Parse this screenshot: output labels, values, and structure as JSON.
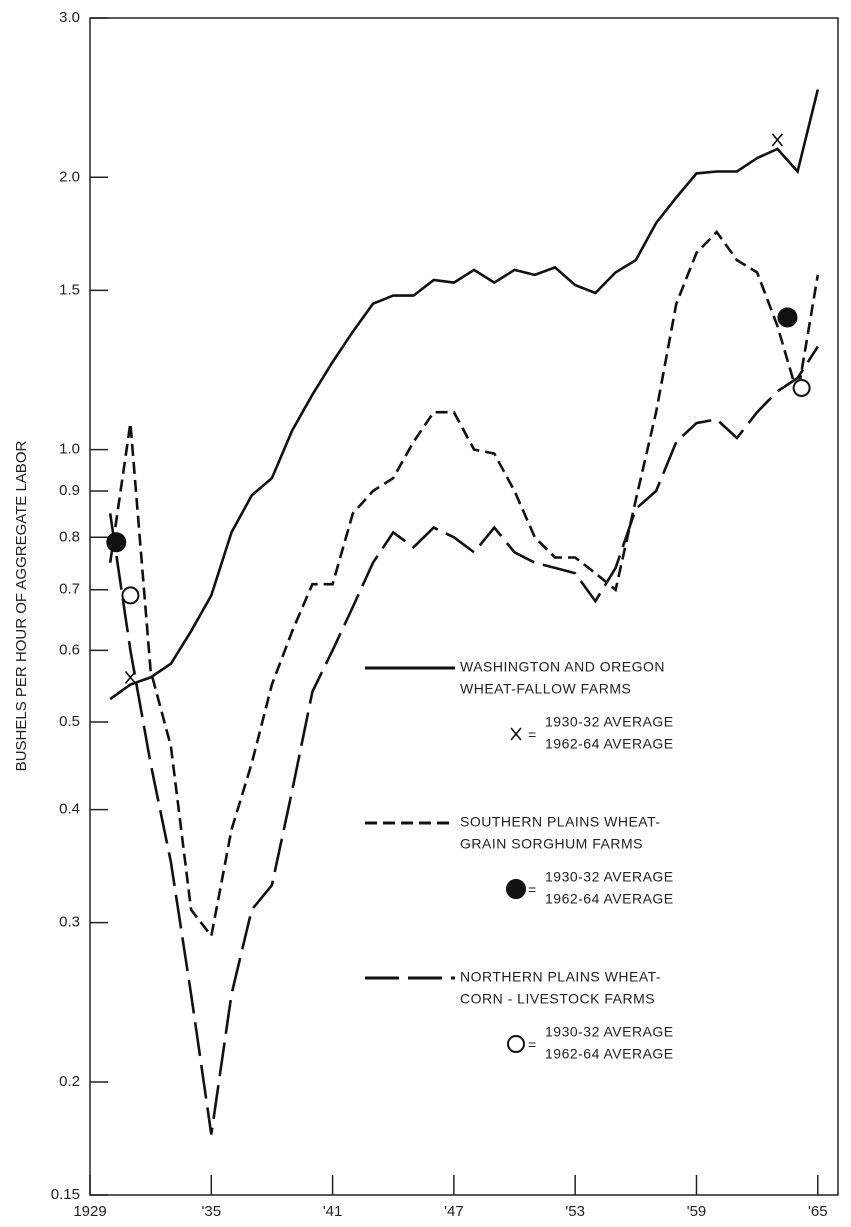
{
  "chart_data": {
    "type": "line",
    "y_label": "BUSHELS PER HOUR OF AGGREGATE LABOR",
    "log_y": true,
    "xlim": [
      1929,
      1966
    ],
    "ylim": [
      0.15,
      3.0
    ],
    "xticks": [
      {
        "value": 1929,
        "label": "1929"
      },
      {
        "value": 1935,
        "label": "'35"
      },
      {
        "value": 1941,
        "label": "'41"
      },
      {
        "value": 1947,
        "label": "'47"
      },
      {
        "value": 1953,
        "label": "'53"
      },
      {
        "value": 1959,
        "label": "'59"
      },
      {
        "value": 1965,
        "label": "'65"
      }
    ],
    "yticks": [
      0.15,
      0.2,
      0.3,
      0.4,
      0.5,
      0.6,
      0.7,
      0.8,
      0.9,
      {
        "value": 1,
        "label": "1.0"
      },
      1.5,
      {
        "value": 2,
        "label": "2.0"
      },
      {
        "value": 3,
        "label": "3.0"
      }
    ],
    "x": [
      1930,
      1931,
      1932,
      1933,
      1934,
      1935,
      1936,
      1937,
      1938,
      1939,
      1940,
      1941,
      1942,
      1943,
      1944,
      1945,
      1946,
      1947,
      1948,
      1949,
      1950,
      1951,
      1952,
      1953,
      1954,
      1955,
      1956,
      1957,
      1958,
      1959,
      1960,
      1961,
      1962,
      1963,
      1964,
      1965
    ],
    "series": [
      {
        "legend_lines": [
          "WASHINGTON AND OREGON",
          "WHEAT-FALLOW FARMS"
        ],
        "dash": "solid",
        "color": "#111",
        "values": [
          0.53,
          0.55,
          0.56,
          0.58,
          0.63,
          0.69,
          0.81,
          0.89,
          0.93,
          1.05,
          1.15,
          1.25,
          1.35,
          1.45,
          1.48,
          1.48,
          1.54,
          1.53,
          1.58,
          1.53,
          1.58,
          1.56,
          1.59,
          1.52,
          1.49,
          1.57,
          1.62,
          1.78,
          1.9,
          2.02,
          2.03,
          2.03,
          2.1,
          2.15,
          2.03,
          2.5
        ],
        "marker": "x",
        "marker_x": [
          1931,
          1963
        ],
        "marker_values": [
          0.56,
          2.2
        ],
        "marker_labels": [
          "1930-32 AVERAGE",
          "1962-64 AVERAGE"
        ]
      },
      {
        "legend_lines": [
          "SOUTHERN PLAINS WHEAT-",
          "GRAIN SORGHUM FARMS"
        ],
        "dash": "short",
        "color": "#111",
        "values": [
          0.75,
          1.07,
          0.57,
          0.47,
          0.31,
          0.29,
          0.38,
          0.45,
          0.55,
          0.63,
          0.71,
          0.71,
          0.85,
          0.9,
          0.93,
          1.02,
          1.1,
          1.1,
          1.0,
          0.99,
          0.9,
          0.8,
          0.76,
          0.76,
          0.73,
          0.7,
          0.88,
          1.1,
          1.45,
          1.65,
          1.74,
          1.62,
          1.57,
          1.37,
          1.15,
          1.56
        ],
        "marker": "dot",
        "marker_x": [
          1930.3,
          1963.5
        ],
        "marker_values": [
          0.79,
          1.4
        ],
        "marker_labels": [
          "1930-32 AVERAGE",
          "1962-64 AVERAGE"
        ]
      },
      {
        "legend_lines": [
          "NORTHERN PLAINS WHEAT-",
          "CORN - LIVESTOCK FARMS"
        ],
        "dash": "long",
        "color": "#111",
        "values": [
          0.85,
          0.6,
          0.45,
          0.35,
          0.25,
          0.175,
          0.25,
          0.31,
          0.33,
          0.42,
          0.54,
          0.6,
          0.67,
          0.75,
          0.81,
          0.78,
          0.82,
          0.8,
          0.77,
          0.82,
          0.77,
          0.75,
          0.74,
          0.73,
          0.68,
          0.74,
          0.86,
          0.9,
          1.02,
          1.07,
          1.08,
          1.03,
          1.1,
          1.16,
          1.2,
          1.3
        ],
        "marker": "circle",
        "marker_x": [
          1931,
          1964.2
        ],
        "marker_values": [
          0.69,
          1.17
        ],
        "marker_labels": [
          "1930-32 AVERAGE",
          "1962-64 AVERAGE"
        ]
      }
    ]
  }
}
